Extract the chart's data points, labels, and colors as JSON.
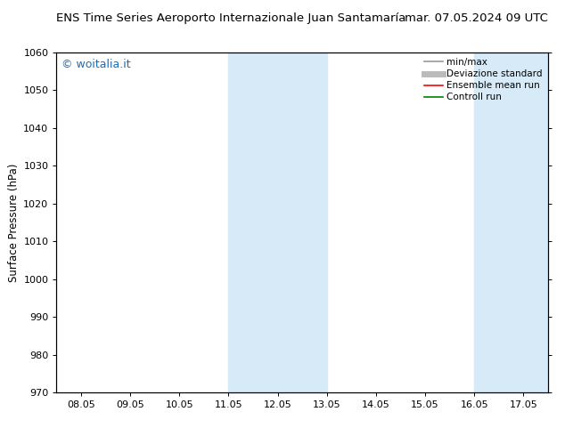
{
  "title_left": "ENS Time Series Aeroporto Internazionale Juan Santamaría",
  "title_right": "mar. 07.05.2024 09 UTC",
  "ylabel": "Surface Pressure (hPa)",
  "ylim": [
    970,
    1060
  ],
  "yticks": [
    970,
    980,
    990,
    1000,
    1010,
    1020,
    1030,
    1040,
    1050,
    1060
  ],
  "xtick_labels": [
    "08.05",
    "09.05",
    "10.05",
    "11.05",
    "12.05",
    "13.05",
    "14.05",
    "15.05",
    "16.05",
    "17.05"
  ],
  "xtick_positions": [
    0,
    1,
    2,
    3,
    4,
    5,
    6,
    7,
    8,
    9
  ],
  "xlim": [
    -0.5,
    9.5
  ],
  "shade_regions": [
    {
      "xmin": 3.0,
      "xmax": 5.0,
      "color": "#d6eaf8",
      "alpha": 1.0
    },
    {
      "xmin": 8.0,
      "xmax": 9.5,
      "color": "#d6eaf8",
      "alpha": 1.0
    }
  ],
  "watermark_text": "© woitalia.it",
  "watermark_color": "#1a6fbb",
  "bg_color": "#ffffff",
  "plot_bg_color": "#ffffff",
  "legend_entries": [
    {
      "label": "min/max",
      "color": "#999999",
      "lw": 1.2,
      "linestyle": "-"
    },
    {
      "label": "Deviazione standard",
      "color": "#bbbbbb",
      "lw": 5,
      "linestyle": "-"
    },
    {
      "label": "Ensemble mean run",
      "color": "#ff0000",
      "lw": 1.2,
      "linestyle": "-"
    },
    {
      "label": "Controll run",
      "color": "#008000",
      "lw": 1.2,
      "linestyle": "-"
    }
  ],
  "title_fontsize": 9.5,
  "tick_fontsize": 8,
  "ylabel_fontsize": 8.5,
  "legend_fontsize": 7.5,
  "watermark_fontsize": 9
}
